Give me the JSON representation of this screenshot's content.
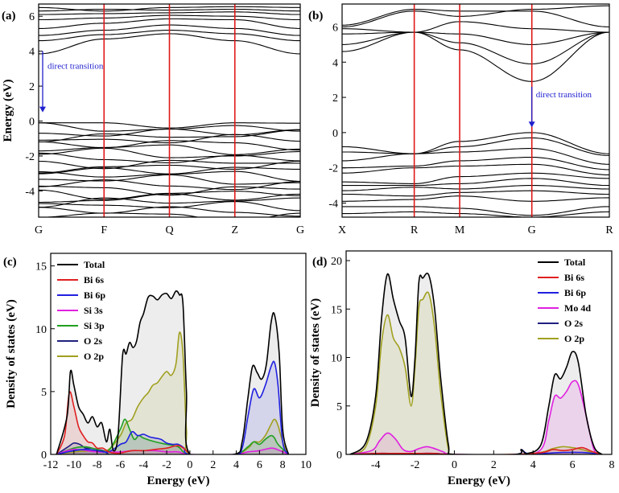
{
  "chart_data": [
    {
      "id": "a",
      "panel_label": "(a)",
      "type": "line",
      "ylabel": "Energy (eV)",
      "ylim": [
        -5.5,
        6.7
      ],
      "yticks": [
        6,
        4,
        2,
        0,
        -2,
        -4
      ],
      "kpoints": [
        "G",
        "F",
        "Q",
        "Z",
        "G"
      ],
      "annotation": "direct transition",
      "conduction_bands": [
        {
          "x": [
            0,
            1,
            2,
            3,
            4
          ],
          "y": [
            3.85,
            4.7,
            5.0,
            4.6,
            3.85
          ]
        },
        {
          "x": [
            0,
            1,
            2,
            3,
            4
          ],
          "y": [
            4.6,
            4.95,
            5.2,
            5.0,
            4.6
          ]
        },
        {
          "x": [
            0,
            1,
            2,
            3,
            4
          ],
          "y": [
            4.9,
            5.2,
            5.5,
            5.3,
            4.9
          ]
        },
        {
          "x": [
            0,
            1,
            2,
            3,
            4
          ],
          "y": [
            5.3,
            5.6,
            5.85,
            5.8,
            5.3
          ]
        },
        {
          "x": [
            0,
            1,
            2,
            3,
            4
          ],
          "y": [
            5.8,
            5.9,
            6.05,
            6.0,
            5.8
          ]
        },
        {
          "x": [
            0,
            1,
            2,
            3,
            4
          ],
          "y": [
            6.1,
            6.15,
            6.2,
            6.25,
            6.1
          ]
        },
        {
          "x": [
            0,
            1,
            2,
            3,
            4
          ],
          "y": [
            6.3,
            6.4,
            6.35,
            6.4,
            6.3
          ]
        },
        {
          "x": [
            0,
            1,
            2,
            3,
            4
          ],
          "y": [
            6.5,
            6.3,
            6.5,
            6.55,
            6.5
          ]
        }
      ],
      "valence_band_top": -0.1,
      "valence_band_bottom": -5.4,
      "valence_band_count": 22
    },
    {
      "id": "b",
      "panel_label": "(b)",
      "type": "line",
      "ylabel": "",
      "ylim": [
        -4.8,
        7.3
      ],
      "yticks": [
        6,
        4,
        2,
        0,
        -2,
        -4
      ],
      "kpoints": [
        "X",
        "R",
        "M",
        "G",
        "R"
      ],
      "annotation": "direct transition",
      "conduction_bands": [
        {
          "x": [
            0,
            1,
            2,
            3,
            4
          ],
          "y": [
            4.6,
            5.7,
            4.7,
            2.9,
            5.7
          ]
        },
        {
          "x": [
            0,
            1,
            2,
            3,
            4
          ],
          "y": [
            5.0,
            5.7,
            5.1,
            3.9,
            5.7
          ]
        },
        {
          "x": [
            0,
            1,
            2,
            3,
            4
          ],
          "y": [
            5.6,
            5.7,
            5.6,
            5.0,
            5.7
          ]
        },
        {
          "x": [
            0,
            1,
            2,
            3,
            4
          ],
          "y": [
            5.9,
            5.7,
            6.3,
            5.9,
            5.7
          ]
        },
        {
          "x": [
            0,
            1,
            2,
            3,
            4
          ],
          "y": [
            6.1,
            7.0,
            6.9,
            6.9,
            6.0
          ]
        },
        {
          "x": [
            0,
            1,
            2,
            3,
            4
          ],
          "y": [
            6.0,
            6.9,
            6.6,
            7.0,
            7.2
          ]
        }
      ],
      "valence_bands": [
        {
          "x": [
            0,
            1,
            2,
            3,
            4
          ],
          "y": [
            -0.8,
            -1.2,
            -0.5,
            0.0,
            -1.2
          ]
        },
        {
          "x": [
            0,
            1,
            2,
            3,
            4
          ],
          "y": [
            -1.1,
            -1.2,
            -0.8,
            -0.3,
            -1.3
          ]
        },
        {
          "x": [
            0,
            1,
            2,
            3,
            4
          ],
          "y": [
            -1.6,
            -1.2,
            -1.1,
            -0.9,
            -1.8
          ]
        },
        {
          "x": [
            0,
            1,
            2,
            3,
            4
          ],
          "y": [
            -2.0,
            -1.9,
            -1.6,
            -1.4,
            -2.1
          ]
        },
        {
          "x": [
            0,
            1,
            2,
            3,
            4
          ],
          "y": [
            -2.3,
            -2.0,
            -1.9,
            -1.8,
            -2.4
          ]
        },
        {
          "x": [
            0,
            1,
            2,
            3,
            4
          ],
          "y": [
            -2.8,
            -2.9,
            -2.5,
            -2.3,
            -2.6
          ]
        },
        {
          "x": [
            0,
            1,
            2,
            3,
            4
          ],
          "y": [
            -3.0,
            -3.0,
            -2.9,
            -2.6,
            -3.0
          ]
        },
        {
          "x": [
            0,
            1,
            2,
            3,
            4
          ],
          "y": [
            -3.3,
            -3.1,
            -3.2,
            -3.0,
            -3.2
          ]
        },
        {
          "x": [
            0,
            1,
            2,
            3,
            4
          ],
          "y": [
            -3.5,
            -3.6,
            -3.4,
            -3.3,
            -3.5
          ]
        },
        {
          "x": [
            0,
            1,
            2,
            3,
            4
          ],
          "y": [
            -3.9,
            -3.8,
            -3.6,
            -3.9,
            -3.7
          ]
        },
        {
          "x": [
            0,
            1,
            2,
            3,
            4
          ],
          "y": [
            -4.2,
            -4.2,
            -4.3,
            -4.7,
            -4.2
          ]
        },
        {
          "x": [
            0,
            1,
            2,
            3,
            4
          ],
          "y": [
            -4.6,
            -4.5,
            -4.6,
            -4.8,
            -4.5
          ]
        }
      ]
    },
    {
      "id": "c",
      "panel_label": "(c)",
      "type": "area",
      "xlabel": "Energy (eV)",
      "ylabel": "Density of states (eV)",
      "xlim": [
        -12,
        10
      ],
      "ylim": [
        0,
        16
      ],
      "xticks": [
        -12,
        -10,
        -8,
        -6,
        -4,
        -2,
        0,
        2,
        4,
        6,
        8,
        10
      ],
      "yticks": [
        0,
        5,
        10,
        15
      ],
      "legend_position": "top-left",
      "series": [
        {
          "name": "Total",
          "color": "#000000",
          "x": [
            -11.5,
            -10.6,
            -10.3,
            -10.0,
            -9.6,
            -9.2,
            -8.8,
            -8.4,
            -8.0,
            -7.6,
            -7.2,
            -6.9,
            -6.6,
            -6.2,
            -5.8,
            -5.5,
            -5.2,
            -4.9,
            -4.6,
            -4.3,
            -4.0,
            -3.6,
            -3.2,
            -2.8,
            -2.4,
            -2.0,
            -1.6,
            -1.2,
            -0.9,
            -0.6,
            -0.3,
            0.0,
            3.8,
            4.5,
            5.0,
            5.4,
            5.8,
            6.2,
            6.6,
            7.0,
            7.3,
            7.7,
            8.0,
            8.5
          ],
          "y": [
            0,
            3.0,
            6.6,
            5.5,
            3.8,
            3.2,
            2.5,
            3.0,
            2.2,
            2.5,
            1.0,
            2.0,
            0.3,
            1.5,
            7.9,
            8.0,
            8.9,
            8.5,
            9.0,
            10.5,
            11.2,
            12.5,
            12.6,
            12.3,
            12.7,
            12.8,
            12.4,
            13.0,
            12.7,
            12.0,
            5.0,
            0,
            0,
            1.0,
            4.5,
            7.0,
            6.5,
            6.0,
            7.2,
            10.5,
            11.1,
            8.0,
            2.0,
            0
          ]
        },
        {
          "name": "Bi 6s",
          "color": "#e02020",
          "x": [
            -11.5,
            -10.8,
            -10.4,
            -10.0,
            -9.6,
            -9.2,
            -8.8,
            -8.4,
            -8.0,
            -7.5,
            -7.0,
            -6.5,
            -6.0,
            -5.0,
            -4.0,
            -3.0,
            -2.0,
            -1.0,
            -0.3,
            0.0
          ],
          "y": [
            0,
            1.5,
            4.9,
            3.8,
            2.2,
            1.5,
            1.0,
            0.9,
            0.5,
            0.5,
            0.2,
            0.1,
            0.1,
            0.3,
            0.3,
            0.4,
            0.5,
            0.7,
            0.3,
            0
          ]
        },
        {
          "name": "Bi 6p",
          "color": "#2020e0",
          "x": [
            -11.5,
            -10.0,
            -9.0,
            -8.0,
            -7.0,
            -6.0,
            -5.5,
            -5.0,
            -4.5,
            -4.0,
            -3.5,
            -3.0,
            -2.5,
            -2.0,
            -1.5,
            -1.0,
            -0.5,
            0.0,
            3.8,
            4.5,
            5.0,
            5.5,
            6.0,
            6.5,
            7.0,
            7.3,
            7.6,
            8.0,
            8.5
          ],
          "y": [
            0,
            0.3,
            0.4,
            0.3,
            0.2,
            0.8,
            1.0,
            1.8,
            1.5,
            1.6,
            1.4,
            1.3,
            1.2,
            0.9,
            0.8,
            0.8,
            0.5,
            0,
            0,
            0.5,
            3.0,
            5.2,
            4.5,
            5.5,
            7.0,
            7.3,
            5.5,
            1.0,
            0
          ]
        },
        {
          "name": "Si 3s",
          "color": "#e020e0",
          "x": [
            -11.5,
            -10.0,
            -8.0,
            -6.0,
            -5.0,
            -4.0,
            -3.0,
            -2.0,
            -1.0,
            0.0,
            3.8,
            5.0,
            6.0,
            7.0,
            7.5,
            8.5
          ],
          "y": [
            0,
            0.4,
            0.2,
            0.2,
            0.3,
            0.3,
            0.3,
            0.2,
            0.2,
            0,
            0,
            0.2,
            0.3,
            0.5,
            0.4,
            0
          ]
        },
        {
          "name": "Si 3p",
          "color": "#20a020",
          "x": [
            -11.5,
            -10.0,
            -9.0,
            -8.0,
            -7.0,
            -6.0,
            -5.6,
            -5.2,
            -4.8,
            -4.4,
            -4.0,
            -3.0,
            -2.0,
            -1.0,
            0.0,
            3.8,
            5.0,
            5.5,
            6.0,
            6.5,
            7.0,
            7.3,
            7.6,
            8.5
          ],
          "y": [
            0,
            0.5,
            0.6,
            0.4,
            0.3,
            2.0,
            2.8,
            2.0,
            1.2,
            1.5,
            1.3,
            1.0,
            0.8,
            0.6,
            0,
            0,
            0.6,
            1.0,
            0.8,
            1.2,
            1.5,
            1.3,
            0.8,
            0
          ]
        },
        {
          "name": "O 2s",
          "color": "#202080",
          "x": [
            -11.5,
            -10.5,
            -10.0,
            -9.5,
            -9.0,
            -8.5,
            -8.0,
            -7.5,
            -7.0
          ],
          "y": [
            0,
            0.6,
            0.9,
            0.8,
            0.5,
            0.5,
            0.4,
            0.3,
            0
          ]
        },
        {
          "name": "O 2p",
          "color": "#a0a020",
          "x": [
            -11.5,
            -10.0,
            -8.0,
            -7.0,
            -6.0,
            -5.5,
            -5.0,
            -4.5,
            -4.0,
            -3.6,
            -3.2,
            -2.8,
            -2.4,
            -2.0,
            -1.6,
            -1.2,
            -0.9,
            -0.6,
            -0.3,
            0.0,
            3.8,
            5.0,
            5.5,
            6.0,
            6.5,
            7.0,
            7.3,
            7.6,
            8.0,
            8.5
          ],
          "y": [
            0,
            0.2,
            0.3,
            0.4,
            1.5,
            2.5,
            2.8,
            3.8,
            4.5,
            4.9,
            5.5,
            5.7,
            6.2,
            6.6,
            6.3,
            7.2,
            9.7,
            8.0,
            2.0,
            0,
            0,
            0.5,
            1.0,
            1.0,
            1.5,
            2.4,
            2.8,
            2.3,
            1.0,
            0
          ]
        }
      ]
    },
    {
      "id": "d",
      "panel_label": "(d)",
      "type": "area",
      "xlabel": "Energy (eV)",
      "ylabel": "Density of states (eV)",
      "xlim": [
        -5.5,
        8
      ],
      "ylim": [
        0,
        21
      ],
      "xticks": [
        -4,
        -2,
        0,
        2,
        4,
        6,
        8
      ],
      "yticks": [
        0,
        5,
        10,
        15,
        20
      ],
      "legend_position": "top-right",
      "series": [
        {
          "name": "Total",
          "color": "#000000",
          "x": [
            -5.3,
            -4.5,
            -4.0,
            -3.7,
            -3.4,
            -3.1,
            -2.8,
            -2.5,
            -2.2,
            -2.0,
            -1.8,
            -1.6,
            -1.3,
            -1.0,
            -0.7,
            -0.3,
            0.0,
            3.1,
            3.4,
            3.7,
            4.4,
            4.8,
            5.1,
            5.4,
            5.7,
            6.0,
            6.3,
            6.7,
            7.1,
            7.5
          ],
          "y": [
            0,
            1.2,
            6.0,
            14.0,
            18.6,
            16.0,
            13.8,
            12.0,
            6.0,
            10.0,
            17.8,
            18.2,
            18.5,
            15.0,
            8.0,
            1.0,
            0,
            0,
            0.5,
            0.1,
            1.0,
            5.0,
            8.2,
            7.8,
            9.0,
            10.6,
            9.5,
            4.0,
            0.8,
            0
          ]
        },
        {
          "name": "Bi 6s",
          "color": "#e02020",
          "x": [
            -5.3,
            -4.0,
            -3.0,
            -2.0,
            -1.0,
            0.0,
            3.1,
            4.5,
            5.0,
            5.5,
            6.0,
            6.5,
            7.0,
            7.5
          ],
          "y": [
            0,
            0.1,
            0.1,
            0.1,
            0.1,
            0,
            0,
            0.2,
            0.5,
            0.4,
            0.5,
            0.7,
            0.3,
            0
          ]
        },
        {
          "name": "Bi 6p",
          "color": "#2020e0",
          "x": [
            -5.3,
            -4.0,
            -3.0,
            -2.0,
            -1.0,
            0.0,
            3.1,
            3.4,
            3.7,
            4.5,
            5.5,
            6.5,
            7.5
          ],
          "y": [
            0,
            0.1,
            0.1,
            0.1,
            0.1,
            0,
            0,
            0.5,
            0.1,
            0.1,
            0.2,
            0.2,
            0
          ]
        },
        {
          "name": "Mo 4d",
          "color": "#e020e0",
          "x": [
            -5.3,
            -4.2,
            -3.8,
            -3.4,
            -3.0,
            -2.6,
            -2.2,
            -1.8,
            -1.4,
            -1.0,
            -0.6,
            0.0,
            3.1,
            4.4,
            4.8,
            5.1,
            5.4,
            5.7,
            6.0,
            6.3,
            6.7,
            7.1,
            7.5
          ],
          "y": [
            0,
            0.4,
            1.4,
            2.2,
            1.6,
            0.5,
            0.3,
            0.6,
            0.8,
            0.6,
            0.3,
            0,
            0,
            0.5,
            3.5,
            6.0,
            5.8,
            6.5,
            7.5,
            7.2,
            4.0,
            0.5,
            0
          ]
        },
        {
          "name": "O 2s",
          "color": "#202080",
          "x": [
            -5.3,
            -4.0,
            -3.0,
            -2.0,
            -1.0,
            0.0
          ],
          "y": [
            0,
            0.05,
            0.05,
            0.05,
            0.05,
            0
          ]
        },
        {
          "name": "O 2p",
          "color": "#a0a020",
          "x": [
            -5.3,
            -4.5,
            -4.0,
            -3.7,
            -3.4,
            -3.1,
            -2.8,
            -2.5,
            -2.2,
            -2.0,
            -1.8,
            -1.6,
            -1.3,
            -1.0,
            -0.7,
            -0.3,
            0.0,
            3.1,
            4.4,
            5.0,
            5.5,
            6.0,
            6.5,
            7.0,
            7.5
          ],
          "y": [
            0,
            0.8,
            5.0,
            11.5,
            14.4,
            12.0,
            11.0,
            9.0,
            5.0,
            9.0,
            15.2,
            16.0,
            16.6,
            13.0,
            6.5,
            0.5,
            0,
            0,
            0.2,
            0.6,
            0.8,
            0.7,
            0.5,
            0.2,
            0
          ]
        }
      ]
    }
  ]
}
